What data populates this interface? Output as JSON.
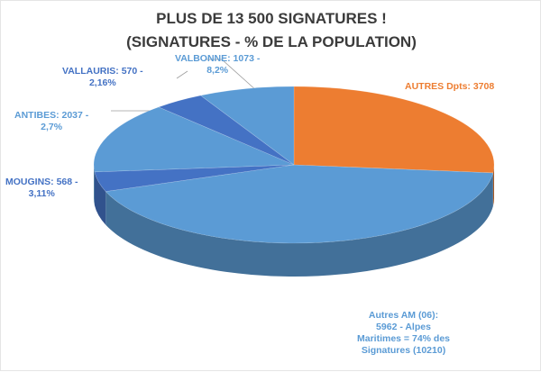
{
  "chart_data": {
    "type": "pie",
    "title": "PLUS DE 13 500 SIGNATURES !",
    "subtitle": "(SIGNATURES - % DE LA POPULATION)",
    "slices": [
      {
        "value": 3708,
        "color": "#ed7d31",
        "label_lines": [
          "AUTRES Dpts: 3708"
        ]
      },
      {
        "value": 5962,
        "color": "#5b9bd5",
        "label_lines": [
          "Autres AM (06):",
          "5962 - Alpes",
          "Maritimes = 74% des",
          "Signatures (10210)"
        ]
      },
      {
        "value": 568,
        "color": "#4472c4",
        "label_lines": [
          "MOUGINS: 568 -",
          "3,11%"
        ]
      },
      {
        "value": 2037,
        "color": "#5b9bd5",
        "label_lines": [
          "ANTIBES: 2037 -",
          "2,7%"
        ]
      },
      {
        "value": 570,
        "color": "#4472c4",
        "label_lines": [
          "VALLAURIS: 570 -",
          "2,16%"
        ]
      },
      {
        "value": 1073,
        "color": "#5b9bd5",
        "label_lines": [
          "VALBONNE: 1073 -",
          "8,2%"
        ]
      }
    ]
  }
}
